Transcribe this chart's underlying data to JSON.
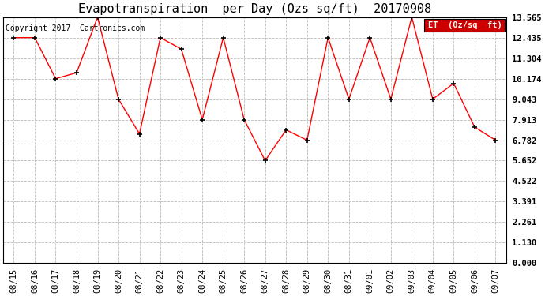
{
  "title": "Evapotranspiration  per Day (Ozs sq/ft)  20170908",
  "copyright": "Copyright 2017  Cartronics.com",
  "legend_label": "ET  (0z/sq  ft)",
  "x_labels": [
    "08/15",
    "08/16",
    "08/17",
    "08/18",
    "08/19",
    "08/20",
    "08/21",
    "08/22",
    "08/23",
    "08/24",
    "08/25",
    "08/26",
    "08/27",
    "08/28",
    "08/29",
    "08/30",
    "08/31",
    "09/01",
    "09/02",
    "09/03",
    "09/04",
    "09/05",
    "09/06",
    "09/07"
  ],
  "y_values": [
    12.435,
    12.435,
    10.174,
    10.5,
    13.565,
    9.043,
    7.13,
    12.435,
    11.8,
    7.913,
    12.435,
    7.913,
    5.652,
    7.348,
    6.782,
    12.435,
    9.043,
    12.435,
    9.043,
    13.565,
    9.043,
    9.913,
    7.5,
    6.782
  ],
  "ytick_values": [
    0.0,
    1.13,
    2.261,
    3.391,
    4.522,
    5.652,
    6.782,
    7.913,
    9.043,
    10.174,
    11.304,
    12.435,
    13.565
  ],
  "ylim": [
    0.0,
    13.565
  ],
  "line_color": "red",
  "marker_color": "black",
  "bg_color": "#ffffff",
  "grid_color": "#bbbbbb",
  "title_fontsize": 11,
  "tick_fontsize": 7.5,
  "copyright_fontsize": 7,
  "legend_bg": "#cc0000",
  "legend_text_color": "white"
}
